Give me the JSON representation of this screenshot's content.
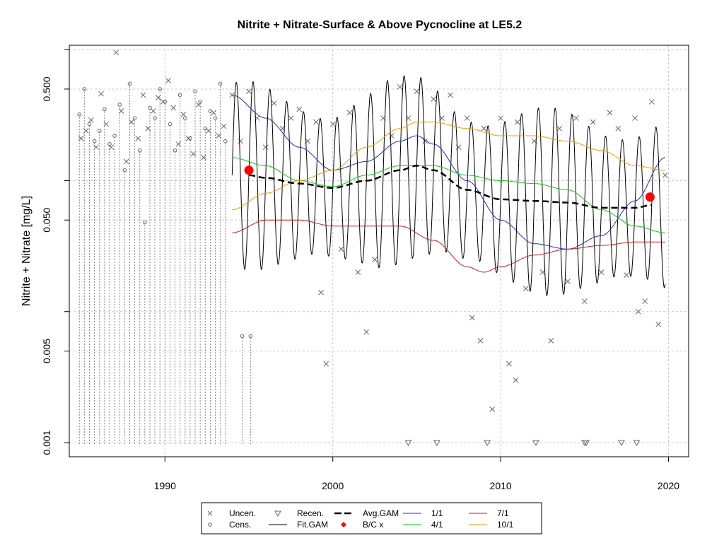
{
  "chart_data": {
    "type": "scatter",
    "title": "Nitrite + Nitrate-Surface & Above Pycnocline at LE5.2",
    "xlabel": "",
    "ylabel": "Nitrite + Nitrate [mg/L]",
    "xlim": [
      1984.3,
      2021.2
    ],
    "ylim": [
      0.00078,
      1.08
    ],
    "y_scale": "log",
    "grid": true,
    "x_ticks": [
      1990,
      2000,
      2010,
      2020
    ],
    "y_ticks": [
      0.001,
      0.005,
      0.05,
      0.5
    ],
    "y_tick_labels": [
      "0.001",
      "0.005",
      "0.050",
      "0.500"
    ],
    "y_grid_extra": [
      0.01,
      0.1,
      1.0
    ],
    "legend": {
      "position": "bottom",
      "entries": [
        {
          "label": "Uncen.",
          "symbol": "x",
          "color": "#666666"
        },
        {
          "label": "Cens.",
          "symbol": "o",
          "color": "#666666"
        },
        {
          "label": "Recen.",
          "symbol": "triangle-down",
          "color": "#666666"
        },
        {
          "label": "Fit.GAM",
          "symbol": "line",
          "color": "#000000"
        },
        {
          "label": "Avg.GAM",
          "symbol": "dash",
          "color": "#000000"
        },
        {
          "label": "B/C x",
          "symbol": "dot",
          "color": "#ff0000"
        },
        {
          "label": "1/1",
          "symbol": "line",
          "color": "#1f2fb5"
        },
        {
          "label": "4/1",
          "symbol": "line",
          "color": "#12c712"
        },
        {
          "label": "7/1",
          "symbol": "line",
          "color": "#cc1a1a"
        },
        {
          "label": "10/1",
          "symbol": "line",
          "color": "#f09a0a"
        }
      ]
    },
    "colors": {
      "blue": "#1f2fb5",
      "green": "#12c712",
      "red": "#cc1a1a",
      "orange": "#f09a0a",
      "point": "#666666",
      "baseline": "#ff0000"
    },
    "baseline_change": [
      {
        "x": 1995.0,
        "y": 0.12
      },
      {
        "x": 2018.9,
        "y": 0.075
      }
    ],
    "series": [
      {
        "name": "1/1",
        "x": [
          1994,
          1996,
          1998,
          2000,
          2002,
          2004,
          2005,
          2006,
          2008,
          2010,
          2012,
          2014,
          2016,
          2018,
          2019.8
        ],
        "y": [
          0.45,
          0.3,
          0.18,
          0.12,
          0.14,
          0.2,
          0.22,
          0.19,
          0.1,
          0.05,
          0.033,
          0.03,
          0.038,
          0.07,
          0.15
        ]
      },
      {
        "name": "4/1",
        "x": [
          1994,
          1996,
          1998,
          2000,
          2002,
          2004,
          2006,
          2008,
          2010,
          2012,
          2014,
          2016,
          2018,
          2019.8
        ],
        "y": [
          0.15,
          0.13,
          0.1,
          0.09,
          0.11,
          0.13,
          0.13,
          0.11,
          0.1,
          0.095,
          0.085,
          0.06,
          0.045,
          0.04
        ]
      },
      {
        "name": "7/1",
        "x": [
          1994,
          1996,
          1998,
          2000,
          2002,
          2004,
          2006,
          2008,
          2009,
          2010,
          2012,
          2014,
          2016,
          2018,
          2019.8
        ],
        "y": [
          0.04,
          0.05,
          0.05,
          0.045,
          0.045,
          0.045,
          0.035,
          0.022,
          0.02,
          0.022,
          0.027,
          0.03,
          0.032,
          0.034,
          0.034
        ]
      },
      {
        "name": "10/1",
        "x": [
          1994,
          1996,
          1998,
          2000,
          2002,
          2004,
          2005,
          2006,
          2008,
          2010,
          2012,
          2014,
          2016,
          2018,
          2019.8
        ],
        "y": [
          0.06,
          0.08,
          0.1,
          0.12,
          0.18,
          0.25,
          0.28,
          0.28,
          0.25,
          0.22,
          0.22,
          0.2,
          0.17,
          0.13,
          0.12
        ]
      },
      {
        "name": "Avg.GAM",
        "x": [
          1995,
          1996,
          1998,
          2000,
          2002,
          2004,
          2005,
          2006,
          2008,
          2010,
          2012,
          2014,
          2016,
          2018,
          2019
        ],
        "y": [
          0.11,
          0.105,
          0.095,
          0.088,
          0.1,
          0.12,
          0.13,
          0.12,
          0.085,
          0.072,
          0.07,
          0.068,
          0.062,
          0.062,
          0.065
        ]
      }
    ],
    "fit_gam": {
      "x_start": 1994.0,
      "x_end": 2019.8,
      "cycle_years": 1.0
    },
    "uncensored_points": [
      [
        1985.0,
        0.21
      ],
      [
        1985.3,
        0.24
      ],
      [
        1985.6,
        0.29
      ],
      [
        1985.9,
        0.18
      ],
      [
        1986.2,
        0.46
      ],
      [
        1986.5,
        0.27
      ],
      [
        1986.8,
        0.18
      ],
      [
        1987.1,
        0.95
      ],
      [
        1987.4,
        0.34
      ],
      [
        1987.7,
        0.14
      ],
      [
        1988.0,
        0.28
      ],
      [
        1988.4,
        0.21
      ],
      [
        1988.7,
        0.45
      ],
      [
        1989.0,
        0.25
      ],
      [
        1989.3,
        0.34
      ],
      [
        1989.6,
        0.43
      ],
      [
        1989.9,
        0.4
      ],
      [
        1990.2,
        0.58
      ],
      [
        1990.5,
        0.36
      ],
      [
        1990.8,
        0.19
      ],
      [
        1991.1,
        0.32
      ],
      [
        1991.4,
        0.21
      ],
      [
        1991.7,
        0.16
      ],
      [
        1992.0,
        0.38
      ],
      [
        1992.3,
        0.15
      ],
      [
        1992.6,
        0.24
      ],
      [
        1992.9,
        0.33
      ],
      [
        1993.2,
        0.22
      ],
      [
        1993.5,
        0.26
      ],
      [
        1994.0,
        0.45
      ],
      [
        1994.5,
        0.2
      ],
      [
        1995.0,
        0.48
      ],
      [
        1995.5,
        0.3
      ],
      [
        1996.0,
        0.18
      ],
      [
        1996.5,
        0.39
      ],
      [
        1997.0,
        0.25
      ],
      [
        1997.5,
        0.3
      ],
      [
        1998.0,
        0.35
      ],
      [
        1998.5,
        0.2
      ],
      [
        1999.0,
        0.28
      ],
      [
        1999.3,
        0.014
      ],
      [
        1999.6,
        0.004
      ],
      [
        2000.0,
        0.27
      ],
      [
        2000.5,
        0.03
      ],
      [
        2001.0,
        0.33
      ],
      [
        2001.5,
        0.02
      ],
      [
        2002.0,
        0.007
      ],
      [
        2002.5,
        0.025
      ],
      [
        2003.0,
        0.3
      ],
      [
        2003.5,
        0.22
      ],
      [
        2004.0,
        0.52
      ],
      [
        2004.5,
        0.3
      ],
      [
        2005.0,
        0.48
      ],
      [
        2005.5,
        0.2
      ],
      [
        2006.0,
        0.42
      ],
      [
        2006.5,
        0.3
      ],
      [
        2007.0,
        0.45
      ],
      [
        2007.5,
        0.18
      ],
      [
        2008.0,
        0.3
      ],
      [
        2008.3,
        0.009
      ],
      [
        2008.8,
        0.006
      ],
      [
        2009.0,
        0.25
      ],
      [
        2009.5,
        0.0018
      ],
      [
        2010.0,
        0.3
      ],
      [
        2010.5,
        0.004
      ],
      [
        2010.9,
        0.003
      ],
      [
        2011.0,
        0.28
      ],
      [
        2011.5,
        0.015
      ],
      [
        2012.0,
        0.2
      ],
      [
        2012.5,
        0.02
      ],
      [
        2013.0,
        0.006
      ],
      [
        2013.5,
        0.25
      ],
      [
        2014.0,
        0.017
      ],
      [
        2014.5,
        0.3
      ],
      [
        2015.0,
        0.012
      ],
      [
        2015.5,
        0.28
      ],
      [
        2016.0,
        0.02
      ],
      [
        2016.5,
        0.33
      ],
      [
        2017.0,
        0.25
      ],
      [
        2017.5,
        0.019
      ],
      [
        2018.0,
        0.3
      ],
      [
        2018.2,
        0.01
      ],
      [
        2018.6,
        0.012
      ],
      [
        2019.0,
        0.4
      ],
      [
        2019.4,
        0.008
      ],
      [
        2019.8,
        0.11
      ]
    ],
    "censored_points": [
      [
        1984.9,
        0.32
      ],
      [
        1985.2,
        0.5
      ],
      [
        1985.5,
        0.27
      ],
      [
        1985.8,
        0.2
      ],
      [
        1986.1,
        0.24
      ],
      [
        1986.4,
        0.35
      ],
      [
        1986.7,
        0.19
      ],
      [
        1987.0,
        0.22
      ],
      [
        1987.3,
        0.38
      ],
      [
        1987.6,
        0.12
      ],
      [
        1987.9,
        0.55
      ],
      [
        1988.2,
        0.3
      ],
      [
        1988.5,
        0.17
      ],
      [
        1988.8,
        0.048
      ],
      [
        1989.1,
        0.36
      ],
      [
        1989.4,
        0.3
      ],
      [
        1989.7,
        0.5
      ],
      [
        1990.0,
        0.4
      ],
      [
        1990.3,
        0.27
      ],
      [
        1990.6,
        0.17
      ],
      [
        1990.9,
        0.45
      ],
      [
        1991.2,
        0.3
      ],
      [
        1991.5,
        0.21
      ],
      [
        1991.8,
        0.48
      ],
      [
        1992.1,
        0.4
      ],
      [
        1992.4,
        0.25
      ],
      [
        1992.7,
        0.34
      ],
      [
        1993.0,
        0.3
      ],
      [
        1993.3,
        0.55
      ],
      [
        1993.6,
        0.2
      ],
      [
        1994.6,
        0.0065
      ],
      [
        1995.1,
        0.0065
      ]
    ],
    "recensored_points": [
      [
        2004.5,
        0.001
      ],
      [
        2006.2,
        0.001
      ],
      [
        2009.2,
        0.001
      ],
      [
        2012.1,
        0.001
      ],
      [
        2015.0,
        0.001
      ],
      [
        2015.1,
        0.001
      ],
      [
        2017.2,
        0.001
      ],
      [
        2018.1,
        0.001
      ]
    ]
  }
}
